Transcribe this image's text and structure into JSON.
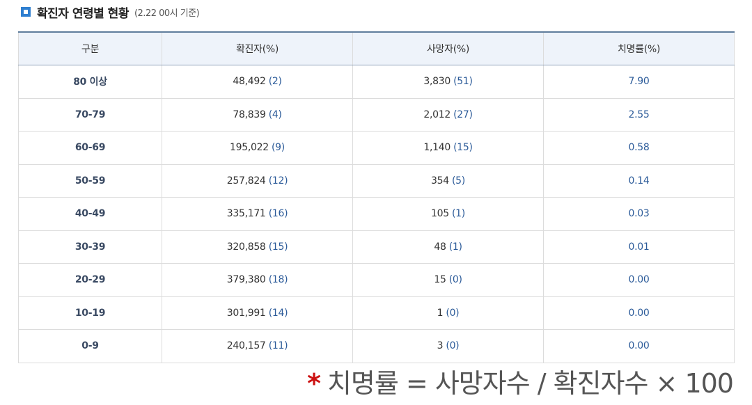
{
  "header": {
    "title": "확진자 연령별 현황",
    "subtitle": "(2.22 00시 기준)"
  },
  "table": {
    "columns": [
      "구분",
      "확진자(%)",
      "사망자(%)",
      "치명률(%)"
    ],
    "rows": [
      {
        "age": "80 이상",
        "confirmed": "48,492",
        "confirmed_pct": "(2)",
        "deaths": "3,830",
        "deaths_pct": "(51)",
        "fatality": "7.90"
      },
      {
        "age": "70-79",
        "confirmed": "78,839",
        "confirmed_pct": "(4)",
        "deaths": "2,012",
        "deaths_pct": "(27)",
        "fatality": "2.55"
      },
      {
        "age": "60-69",
        "confirmed": "195,022",
        "confirmed_pct": "(9)",
        "deaths": "1,140",
        "deaths_pct": "(15)",
        "fatality": "0.58"
      },
      {
        "age": "50-59",
        "confirmed": "257,824",
        "confirmed_pct": "(12)",
        "deaths": "354",
        "deaths_pct": "(5)",
        "fatality": "0.14"
      },
      {
        "age": "40-49",
        "confirmed": "335,171",
        "confirmed_pct": "(16)",
        "deaths": "105",
        "deaths_pct": "(1)",
        "fatality": "0.03"
      },
      {
        "age": "30-39",
        "confirmed": "320,858",
        "confirmed_pct": "(15)",
        "deaths": "48",
        "deaths_pct": "(1)",
        "fatality": "0.01"
      },
      {
        "age": "20-29",
        "confirmed": "379,380",
        "confirmed_pct": "(18)",
        "deaths": "15",
        "deaths_pct": "(0)",
        "fatality": "0.00"
      },
      {
        "age": "10-19",
        "confirmed": "301,991",
        "confirmed_pct": "(14)",
        "deaths": "1",
        "deaths_pct": "(0)",
        "fatality": "0.00"
      },
      {
        "age": "0-9",
        "confirmed": "240,157",
        "confirmed_pct": "(11)",
        "deaths": "3",
        "deaths_pct": "(0)",
        "fatality": "0.00"
      }
    ]
  },
  "footnote": {
    "star": "*",
    "formula": "치명률 = 사망자수 / 확진자수 × 100"
  },
  "colors": {
    "accent": "#2f7fd0",
    "header_bg": "#eef3fa",
    "pct_text": "#2c5b99",
    "star": "#cc1111"
  }
}
